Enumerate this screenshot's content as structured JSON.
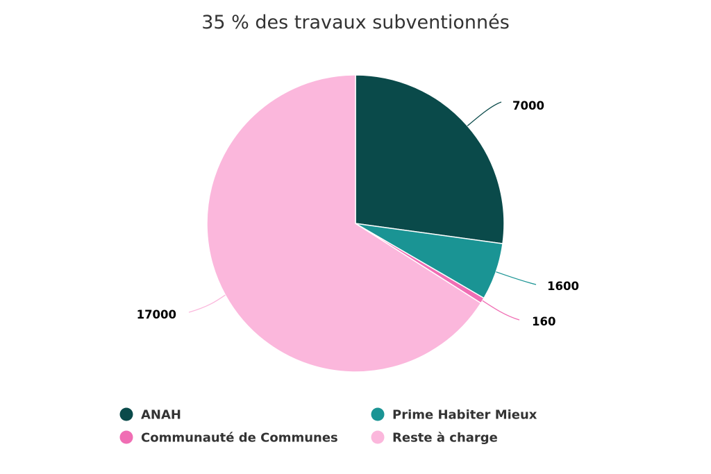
{
  "chart_data": {
    "type": "pie",
    "title": "35 % des travaux subventionnés",
    "categories": [
      "ANAH",
      "Prime Habiter Mieux",
      "Communauté de Communes",
      "Reste à charge"
    ],
    "values": [
      7000,
      1600,
      160,
      17000
    ],
    "labels": [
      "7000",
      "1600",
      "160",
      "17000"
    ],
    "colors": [
      "#0a4a4a",
      "#1a9494",
      "#f06eb4",
      "#fbb7dc"
    ],
    "legend_placement": "bottom"
  }
}
